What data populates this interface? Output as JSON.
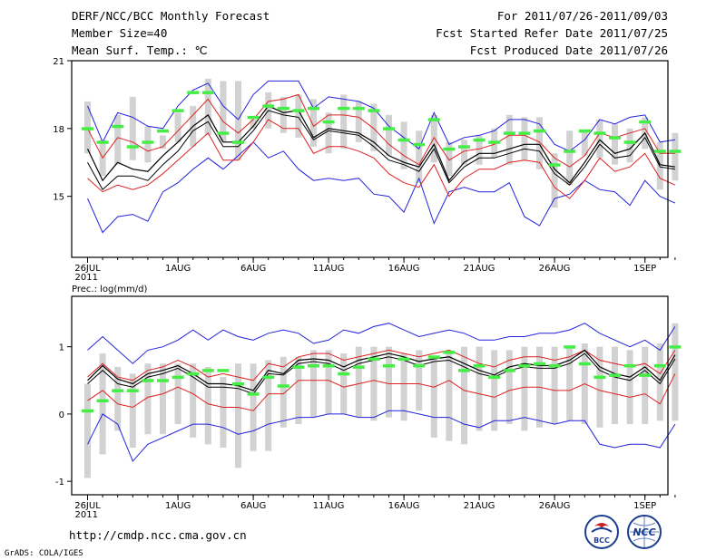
{
  "header": {
    "title": "DERF/NCC/BCC Monthly Forecast",
    "member_size": "Member Size=40",
    "variable": "Mean Surf. Temp.: ℃",
    "period": "For 2011/07/26-2011/09/03",
    "started": "Fcst Started Refer Date 2011/07/25",
    "produced": "Fcst Produced Date 2011/07/26"
  },
  "footer": {
    "url": "http://cmdp.ncc.cma.gov.cn",
    "credit": "GrADS: COLA/IGES",
    "logo_bcc": "BCC",
    "logo_ncc": "NCC"
  },
  "colors": {
    "box": "#d2d2d2",
    "marker": "#44ee44",
    "mean": "#000000",
    "spread": "#dd2222",
    "extreme": "#2222dd"
  },
  "chart_data": [
    {
      "type": "box-ensemble",
      "title": "Mean Surf. Temp.: ℃",
      "xlabels": [
        "26JUL",
        "1AUG",
        "6AUG",
        "11AUG",
        "16AUG",
        "21AUG",
        "26AUG",
        "1SEP"
      ],
      "xlabel_day_index": [
        0,
        6,
        11,
        16,
        21,
        26,
        31,
        37
      ],
      "year_label": "2011",
      "yticks": [
        15,
        18,
        21
      ],
      "ylim": [
        12.3,
        21
      ],
      "days": 40,
      "max": [
        19.0,
        17.4,
        18.7,
        18.5,
        18.1,
        18.0,
        19.0,
        19.7,
        20.0,
        19.0,
        18.4,
        19.5,
        20.1,
        20.1,
        20.1,
        18.9,
        19.4,
        19.3,
        19.2,
        18.9,
        18.1,
        17.6,
        17.1,
        18.7,
        17.3,
        17.6,
        17.7,
        17.9,
        18.4,
        18.4,
        18.2,
        17.3,
        17.0,
        17.5,
        18.4,
        18.2,
        18.5,
        18.6,
        17.4,
        17.5
      ],
      "upper": [
        18.0,
        16.7,
        17.6,
        17.4,
        17.0,
        17.2,
        17.9,
        18.6,
        19.3,
        18.3,
        17.8,
        18.4,
        19.2,
        19.3,
        19.5,
        18.1,
        18.6,
        18.6,
        18.5,
        18.0,
        17.3,
        16.8,
        16.4,
        17.6,
        16.6,
        17.0,
        17.1,
        17.3,
        17.7,
        17.7,
        17.4,
        16.7,
        16.3,
        16.8,
        17.8,
        17.6,
        17.8,
        18.0,
        16.9,
        16.9
      ],
      "mean": [
        17.1,
        15.7,
        16.5,
        16.2,
        16.1,
        16.8,
        17.4,
        18.1,
        18.6,
        17.4,
        17.4,
        18.1,
        19.0,
        18.7,
        18.8,
        17.6,
        18.0,
        17.9,
        17.8,
        17.4,
        16.8,
        16.5,
        16.3,
        17.3,
        15.7,
        16.5,
        16.9,
        16.9,
        17.1,
        17.3,
        17.3,
        16.2,
        15.6,
        16.5,
        17.5,
        16.9,
        17.1,
        17.8,
        16.4,
        16.3
      ],
      "lower": [
        16.5,
        15.3,
        15.9,
        15.9,
        15.7,
        16.4,
        17.0,
        17.9,
        18.3,
        17.2,
        17.2,
        17.9,
        18.8,
        18.6,
        18.5,
        17.5,
        17.9,
        17.8,
        17.7,
        17.2,
        16.6,
        16.4,
        16.1,
        17.1,
        15.6,
        16.3,
        16.7,
        16.7,
        16.9,
        17.1,
        17.0,
        16.0,
        15.5,
        16.3,
        17.3,
        16.7,
        16.8,
        17.6,
        16.3,
        16.2
      ],
      "min_member": [
        15.8,
        15.2,
        15.5,
        15.3,
        15.5,
        16.0,
        16.6,
        17.2,
        17.8,
        16.6,
        16.6,
        17.4,
        18.4,
        18.0,
        18.0,
        16.9,
        17.2,
        17.2,
        17.0,
        16.7,
        16.0,
        15.6,
        15.4,
        16.4,
        15.0,
        15.8,
        16.2,
        16.2,
        16.5,
        16.6,
        16.5,
        15.4,
        14.9,
        15.7,
        16.7,
        16.1,
        16.3,
        16.9,
        15.8,
        15.5
      ],
      "min": [
        14.9,
        13.4,
        14.1,
        14.2,
        13.9,
        15.2,
        15.6,
        16.2,
        16.7,
        16.2,
        16.8,
        17.4,
        16.7,
        17.0,
        16.2,
        15.7,
        15.8,
        15.7,
        15.8,
        15.1,
        15.0,
        14.3,
        15.8,
        13.8,
        15.2,
        15.4,
        15.2,
        15.2,
        15.6,
        14.1,
        13.7,
        14.9,
        15.1,
        15.7,
        15.3,
        15.2,
        14.6,
        15.7,
        15.0,
        14.7
      ],
      "box_top": [
        19.2,
        17.5,
        18.6,
        19.4,
        18.1,
        17.7,
        18.7,
        19.0,
        20.2,
        20.1,
        20.1,
        18.4,
        19.6,
        19.4,
        19.5,
        19.3,
        18.7,
        19.5,
        19.2,
        19.1,
        18.6,
        18.3,
        17.9,
        18.6,
        17.4,
        17.5,
        17.7,
        18.0,
        18.6,
        18.5,
        18.5,
        16.9,
        17.9,
        17.9,
        18.4,
        18.2,
        18.0,
        18.5,
        17.4,
        17.8
      ],
      "box_bottom": [
        16.9,
        15.9,
        16.4,
        16.6,
        16.5,
        17.1,
        17.4,
        17.2,
        17.7,
        17.4,
        16.6,
        18.0,
        18.0,
        17.8,
        17.6,
        17.2,
        16.9,
        17.1,
        17.4,
        17.0,
        16.8,
        16.2,
        15.6,
        16.5,
        15.9,
        16.4,
        16.4,
        16.7,
        16.4,
        16.6,
        16.2,
        14.5,
        15.5,
        16.8,
        16.7,
        16.4,
        16.5,
        17.1,
        15.3,
        15.7
      ],
      "marker": [
        18.0,
        17.4,
        18.1,
        17.2,
        17.4,
        17.9,
        18.8,
        19.6,
        19.6,
        17.8,
        17.4,
        18.5,
        19.0,
        18.9,
        18.8,
        18.9,
        18.3,
        18.9,
        18.9,
        18.8,
        18.0,
        17.5,
        17.3,
        18.4,
        17.1,
        17.2,
        17.5,
        17.4,
        17.8,
        17.8,
        17.9,
        16.4,
        17.0,
        17.9,
        17.8,
        17.6,
        17.4,
        18.3,
        17.0,
        17.0
      ]
    },
    {
      "type": "box-ensemble",
      "title": "Prec.: log(mm/d)",
      "xlabels": [
        "26JUL",
        "1AUG",
        "6AUG",
        "11AUG",
        "16AUG",
        "21AUG",
        "26AUG",
        "1SEP"
      ],
      "xlabel_day_index": [
        0,
        6,
        11,
        16,
        21,
        26,
        31,
        37
      ],
      "year_label": "2011",
      "yticks": [
        -1,
        0,
        1
      ],
      "ylim": [
        -1.2,
        1.75
      ],
      "days": 40,
      "max": [
        0.95,
        1.15,
        0.95,
        0.75,
        0.95,
        1.0,
        1.1,
        1.25,
        1.1,
        1.25,
        1.15,
        1.1,
        1.2,
        1.25,
        1.2,
        1.05,
        1.1,
        1.25,
        1.2,
        1.3,
        1.35,
        1.25,
        1.15,
        1.2,
        1.25,
        1.2,
        1.1,
        1.1,
        1.15,
        1.15,
        1.2,
        1.2,
        1.25,
        1.35,
        1.2,
        1.1,
        1.0,
        1.1,
        0.95,
        1.3
      ],
      "upper": [
        0.55,
        0.75,
        0.55,
        0.5,
        0.65,
        0.7,
        0.8,
        0.7,
        0.55,
        0.6,
        0.55,
        0.5,
        0.75,
        0.7,
        0.85,
        0.9,
        0.9,
        0.8,
        0.85,
        0.9,
        0.95,
        0.9,
        0.85,
        0.9,
        0.95,
        0.85,
        0.75,
        0.7,
        0.8,
        0.85,
        0.85,
        0.8,
        0.85,
        0.95,
        0.8,
        0.75,
        0.7,
        0.75,
        0.6,
        0.95
      ],
      "mean": [
        0.5,
        0.72,
        0.52,
        0.45,
        0.6,
        0.65,
        0.72,
        0.6,
        0.45,
        0.45,
        0.42,
        0.35,
        0.65,
        0.6,
        0.8,
        0.82,
        0.8,
        0.7,
        0.8,
        0.85,
        0.9,
        0.85,
        0.78,
        0.82,
        0.85,
        0.75,
        0.65,
        0.58,
        0.7,
        0.75,
        0.72,
        0.72,
        0.8,
        0.95,
        0.7,
        0.6,
        0.55,
        0.7,
        0.5,
        0.88
      ],
      "lower": [
        0.45,
        0.65,
        0.45,
        0.4,
        0.55,
        0.6,
        0.68,
        0.55,
        0.4,
        0.4,
        0.38,
        0.3,
        0.6,
        0.58,
        0.75,
        0.78,
        0.75,
        0.65,
        0.75,
        0.8,
        0.85,
        0.8,
        0.72,
        0.78,
        0.8,
        0.7,
        0.6,
        0.55,
        0.65,
        0.7,
        0.68,
        0.68,
        0.75,
        0.9,
        0.65,
        0.55,
        0.5,
        0.65,
        0.45,
        0.82
      ],
      "min_member": [
        0.2,
        0.35,
        0.15,
        0.1,
        0.25,
        0.3,
        0.4,
        0.3,
        0.15,
        0.1,
        0.1,
        0.05,
        0.3,
        0.3,
        0.5,
        0.5,
        0.5,
        0.4,
        0.45,
        0.5,
        0.45,
        0.45,
        0.45,
        0.4,
        0.5,
        0.35,
        0.3,
        0.25,
        0.35,
        0.4,
        0.4,
        0.35,
        0.35,
        0.45,
        0.35,
        0.3,
        0.25,
        0.3,
        0.15,
        0.6
      ],
      "min": [
        -0.45,
        0.0,
        -0.15,
        -0.7,
        -0.45,
        -0.35,
        -0.25,
        -0.15,
        -0.15,
        -0.2,
        -0.3,
        -0.25,
        -0.15,
        -0.1,
        -0.05,
        -0.05,
        0.0,
        0.0,
        -0.05,
        -0.05,
        0.05,
        0.05,
        0.0,
        -0.05,
        -0.05,
        -0.15,
        -0.2,
        -0.1,
        -0.1,
        -0.05,
        -0.1,
        -0.15,
        -0.1,
        -0.1,
        -0.45,
        -0.5,
        -0.45,
        -0.45,
        -0.5,
        -0.15
      ],
      "box_top": [
        0.45,
        0.9,
        0.7,
        0.6,
        0.75,
        0.75,
        0.75,
        0.75,
        0.7,
        0.55,
        0.75,
        0.75,
        0.8,
        0.85,
        0.85,
        0.95,
        0.95,
        0.9,
        1.0,
        1.0,
        1.0,
        0.9,
        0.95,
        0.85,
        0.95,
        1.0,
        1.0,
        0.95,
        0.95,
        1.0,
        1.0,
        1.0,
        1.0,
        1.05,
        1.0,
        1.0,
        0.95,
        1.0,
        1.05,
        1.35
      ],
      "box_bottom": [
        -0.95,
        -0.6,
        -0.25,
        -0.5,
        -0.3,
        -0.3,
        -0.15,
        -0.35,
        -0.45,
        -0.5,
        -0.8,
        -0.55,
        -0.55,
        -0.2,
        -0.15,
        -0.05,
        0.0,
        0.0,
        -0.05,
        -0.1,
        -0.05,
        -0.1,
        0.05,
        -0.35,
        -0.4,
        -0.45,
        -0.25,
        -0.25,
        -0.15,
        -0.25,
        -0.2,
        -0.15,
        -0.1,
        -0.15,
        -0.2,
        -0.15,
        -0.15,
        -0.15,
        -0.1,
        -0.1
      ],
      "marker": [
        0.05,
        0.2,
        0.35,
        0.35,
        0.5,
        0.5,
        0.55,
        0.6,
        0.65,
        0.65,
        0.45,
        0.3,
        0.55,
        0.42,
        0.7,
        0.72,
        0.72,
        0.6,
        0.7,
        0.82,
        0.72,
        0.82,
        0.72,
        0.85,
        0.92,
        0.65,
        0.72,
        0.55,
        0.65,
        0.72,
        0.75,
        0.72,
        1.0,
        0.75,
        0.55,
        0.58,
        0.72,
        0.58,
        0.72,
        1.0
      ]
    }
  ]
}
